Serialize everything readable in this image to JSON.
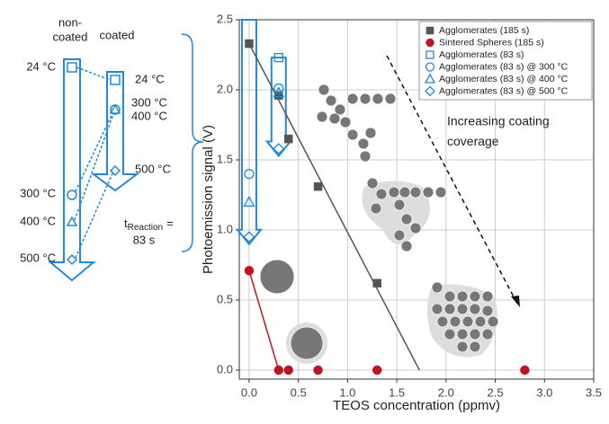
{
  "chart_data": {
    "type": "scatter",
    "xlabel": "TEOS concentration (ppmv)",
    "ylabel": "Photoemission signal (V)",
    "xlim": [
      -0.1,
      3.5
    ],
    "ylim": [
      -0.064,
      2.5
    ],
    "xticks": [
      {
        "value": 0,
        "label": "0.0"
      },
      {
        "value": 0.5,
        "label": "0.5"
      },
      {
        "value": 1,
        "label": "1.0"
      },
      {
        "value": 1.5,
        "label": "1.5"
      },
      {
        "value": 2,
        "label": "2.0"
      },
      {
        "value": 2.5,
        "label": "2.5"
      },
      {
        "value": 3,
        "label": "3.0"
      },
      {
        "value": 3.5,
        "label": "3.5"
      }
    ],
    "yticks": [
      {
        "value": 0,
        "label": "0.0"
      },
      {
        "value": 0.5,
        "label": "0.5"
      },
      {
        "value": 1,
        "label": "1.0"
      },
      {
        "value": 1.5,
        "label": "1.5"
      },
      {
        "value": 2,
        "label": "2.0"
      },
      {
        "value": 2.5,
        "label": "2.5"
      }
    ],
    "grid": true,
    "legend": "upper right",
    "series": [
      {
        "name": "Agglomerates (185 s)",
        "color": "#555555",
        "marker": "square",
        "filled": true,
        "x": [
          0,
          0.3,
          0.4,
          0.7,
          1.3
        ],
        "values": [
          2.33,
          1.96,
          1.65,
          1.31,
          0.62
        ]
      },
      {
        "name": "Sintered Spheres (185 s)",
        "color": "#c0141e",
        "marker": "circle",
        "filled": true,
        "x": [
          0,
          0.3,
          0.4,
          0.7,
          1.3,
          2.8
        ],
        "values": [
          0.71,
          0,
          0,
          0,
          0,
          0
        ]
      },
      {
        "name": "Agglomerates (83 s)",
        "color": "#2288dd",
        "marker": "square",
        "filled": false,
        "x": [
          0.3
        ],
        "values": [
          2.23
        ]
      },
      {
        "name": "Agglomerates (83 s) @ 300 °C",
        "color": "#2288dd",
        "marker": "circle",
        "filled": false,
        "x": [
          0,
          0.3
        ],
        "values": [
          1.4,
          2.01
        ]
      },
      {
        "name": "Agglomerates (83 s) @ 400 °C",
        "color": "#2288dd",
        "marker": "triangle",
        "filled": false,
        "x": [
          0,
          0.3
        ],
        "values": [
          1.2,
          1.98
        ]
      },
      {
        "name": "Agglomerates (83 s) @ 500 °C",
        "color": "#2288dd",
        "marker": "diamond",
        "filled": false,
        "x": [
          0,
          0.3
        ],
        "values": [
          0.95,
          1.58
        ]
      }
    ],
    "lines": [
      {
        "color": "#555555",
        "x": [
          0,
          1.73
        ],
        "values": [
          2.33,
          0
        ]
      },
      {
        "color": "#c0141e",
        "x": [
          0,
          0.3
        ],
        "values": [
          0.71,
          0
        ]
      }
    ],
    "annotation": "Increasing coating coverage"
  },
  "diagram": {
    "non_coated": "non-",
    "non_coated_2": "coated",
    "coated": "coated",
    "left_temps": [
      "24 °C",
      "300 °C",
      "400 °C",
      "500 °C"
    ],
    "right_temps": [
      "24 °C",
      "300 °C",
      "400 °C",
      "500 °C"
    ],
    "t": "t",
    "t_sub": "Reaction",
    "t_eq": "=",
    "t_val": "83 s"
  }
}
